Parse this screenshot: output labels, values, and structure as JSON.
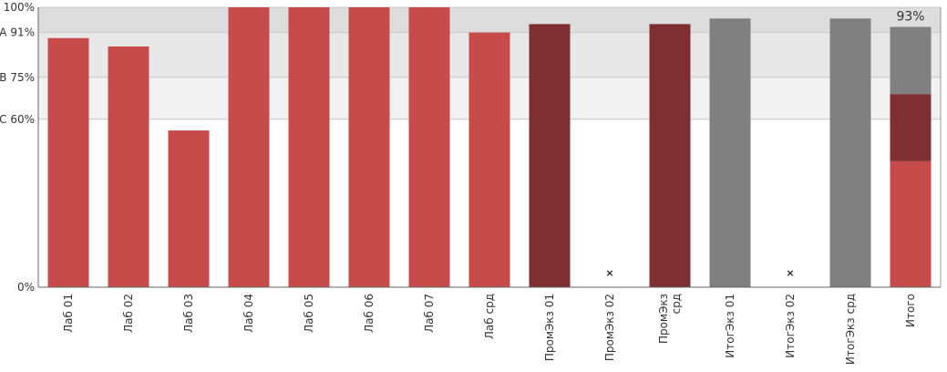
{
  "chart_data": {
    "type": "bar",
    "title": "",
    "xlabel": "",
    "ylabel": "",
    "ylim": [
      0,
      100
    ],
    "y_ticks": [
      {
        "value": 0,
        "label": "0%"
      },
      {
        "value": 60,
        "label": "C 60%"
      },
      {
        "value": 75,
        "label": "B 75%"
      },
      {
        "value": 91,
        "label": "A 91%"
      },
      {
        "value": 100,
        "label": "100%"
      }
    ],
    "grade_bands": [
      {
        "from": 60,
        "to": 75,
        "color": "#f2f2f2"
      },
      {
        "from": 75,
        "to": 91,
        "color": "#e8e8e8"
      },
      {
        "from": 91,
        "to": 100,
        "color": "#dddddd"
      }
    ],
    "bars": [
      {
        "label": [
          "Лаб 01"
        ],
        "value": 89,
        "color": "#c84b4b"
      },
      {
        "label": [
          "Лаб 02"
        ],
        "value": 86,
        "color": "#c84b4b"
      },
      {
        "label": [
          "Лаб 03"
        ],
        "value": 56,
        "color": "#c84b4b"
      },
      {
        "label": [
          "Лаб 04"
        ],
        "value": 100,
        "color": "#c84b4b"
      },
      {
        "label": [
          "Лаб 05"
        ],
        "value": 100,
        "color": "#c84b4b"
      },
      {
        "label": [
          "Лаб 06"
        ],
        "value": 100,
        "color": "#c84b4b"
      },
      {
        "label": [
          "Лаб 07"
        ],
        "value": 100,
        "color": "#c84b4b"
      },
      {
        "label": [
          "Лаб срд"
        ],
        "value": 91,
        "color": "#c84b4b"
      },
      {
        "label": [
          "ПромЭкз 01"
        ],
        "value": 94,
        "color": "#7e2f32"
      },
      {
        "label": [
          "ПромЭкз 02"
        ],
        "value": null,
        "marker": "×"
      },
      {
        "label": [
          "ПромЭкз",
          "срд"
        ],
        "value": 94,
        "color": "#7e2f32"
      },
      {
        "label": [
          "ИтогЭкз 01"
        ],
        "value": 96,
        "color": "#808080"
      },
      {
        "label": [
          "ИтогЭкз 02"
        ],
        "value": null,
        "marker": "×"
      },
      {
        "label": [
          "ИтогЭкз срд"
        ],
        "value": 96,
        "color": "#808080"
      },
      {
        "label": [
          "Итого"
        ],
        "stack": [
          {
            "value": 45,
            "color": "#c84b4b"
          },
          {
            "value": 24,
            "color": "#7e2f32"
          },
          {
            "value": 24,
            "color": "#808080"
          }
        ],
        "data_label": "93%"
      }
    ],
    "grid": true,
    "legend": "none"
  }
}
